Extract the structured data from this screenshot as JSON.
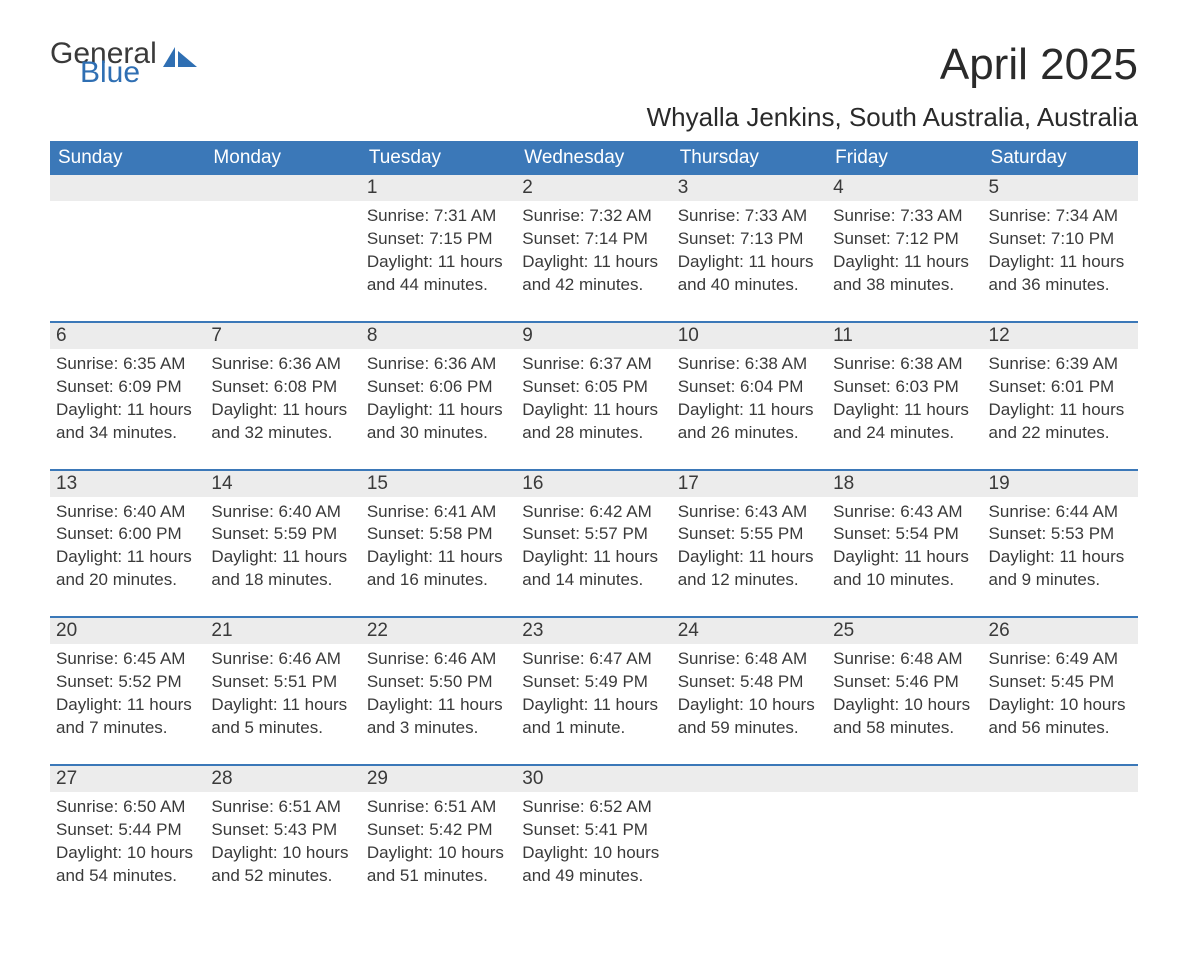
{
  "brand": {
    "line1": "General",
    "line2": "Blue"
  },
  "title": "April 2025",
  "subtitle": "Whyalla Jenkins, South Australia, Australia",
  "colors": {
    "header_bg": "#3b78b8",
    "header_fg": "#ffffff",
    "daynum_bg": "#ececec",
    "rule": "#3b78b8",
    "text": "#3a3a3a",
    "brand_blue": "#2f6fb3",
    "background": "#ffffff"
  },
  "typography": {
    "title_fontsize": 44,
    "subtitle_fontsize": 26,
    "header_fontsize": 19,
    "daynum_fontsize": 19,
    "cell_fontsize": 17,
    "font_family": "Segoe UI, Arial, Helvetica, sans-serif"
  },
  "calendar": {
    "type": "table",
    "columns": [
      "Sunday",
      "Monday",
      "Tuesday",
      "Wednesday",
      "Thursday",
      "Friday",
      "Saturday"
    ],
    "weeks": [
      [
        {
          "day": "",
          "lines": []
        },
        {
          "day": "",
          "lines": []
        },
        {
          "day": "1",
          "lines": [
            "Sunrise: 7:31 AM",
            "Sunset: 7:15 PM",
            "Daylight: 11 hours and 44 minutes."
          ]
        },
        {
          "day": "2",
          "lines": [
            "Sunrise: 7:32 AM",
            "Sunset: 7:14 PM",
            "Daylight: 11 hours and 42 minutes."
          ]
        },
        {
          "day": "3",
          "lines": [
            "Sunrise: 7:33 AM",
            "Sunset: 7:13 PM",
            "Daylight: 11 hours and 40 minutes."
          ]
        },
        {
          "day": "4",
          "lines": [
            "Sunrise: 7:33 AM",
            "Sunset: 7:12 PM",
            "Daylight: 11 hours and 38 minutes."
          ]
        },
        {
          "day": "5",
          "lines": [
            "Sunrise: 7:34 AM",
            "Sunset: 7:10 PM",
            "Daylight: 11 hours and 36 minutes."
          ]
        }
      ],
      [
        {
          "day": "6",
          "lines": [
            "Sunrise: 6:35 AM",
            "Sunset: 6:09 PM",
            "Daylight: 11 hours and 34 minutes."
          ]
        },
        {
          "day": "7",
          "lines": [
            "Sunrise: 6:36 AM",
            "Sunset: 6:08 PM",
            "Daylight: 11 hours and 32 minutes."
          ]
        },
        {
          "day": "8",
          "lines": [
            "Sunrise: 6:36 AM",
            "Sunset: 6:06 PM",
            "Daylight: 11 hours and 30 minutes."
          ]
        },
        {
          "day": "9",
          "lines": [
            "Sunrise: 6:37 AM",
            "Sunset: 6:05 PM",
            "Daylight: 11 hours and 28 minutes."
          ]
        },
        {
          "day": "10",
          "lines": [
            "Sunrise: 6:38 AM",
            "Sunset: 6:04 PM",
            "Daylight: 11 hours and 26 minutes."
          ]
        },
        {
          "day": "11",
          "lines": [
            "Sunrise: 6:38 AM",
            "Sunset: 6:03 PM",
            "Daylight: 11 hours and 24 minutes."
          ]
        },
        {
          "day": "12",
          "lines": [
            "Sunrise: 6:39 AM",
            "Sunset: 6:01 PM",
            "Daylight: 11 hours and 22 minutes."
          ]
        }
      ],
      [
        {
          "day": "13",
          "lines": [
            "Sunrise: 6:40 AM",
            "Sunset: 6:00 PM",
            "Daylight: 11 hours and 20 minutes."
          ]
        },
        {
          "day": "14",
          "lines": [
            "Sunrise: 6:40 AM",
            "Sunset: 5:59 PM",
            "Daylight: 11 hours and 18 minutes."
          ]
        },
        {
          "day": "15",
          "lines": [
            "Sunrise: 6:41 AM",
            "Sunset: 5:58 PM",
            "Daylight: 11 hours and 16 minutes."
          ]
        },
        {
          "day": "16",
          "lines": [
            "Sunrise: 6:42 AM",
            "Sunset: 5:57 PM",
            "Daylight: 11 hours and 14 minutes."
          ]
        },
        {
          "day": "17",
          "lines": [
            "Sunrise: 6:43 AM",
            "Sunset: 5:55 PM",
            "Daylight: 11 hours and 12 minutes."
          ]
        },
        {
          "day": "18",
          "lines": [
            "Sunrise: 6:43 AM",
            "Sunset: 5:54 PM",
            "Daylight: 11 hours and 10 minutes."
          ]
        },
        {
          "day": "19",
          "lines": [
            "Sunrise: 6:44 AM",
            "Sunset: 5:53 PM",
            "Daylight: 11 hours and 9 minutes."
          ]
        }
      ],
      [
        {
          "day": "20",
          "lines": [
            "Sunrise: 6:45 AM",
            "Sunset: 5:52 PM",
            "Daylight: 11 hours and 7 minutes."
          ]
        },
        {
          "day": "21",
          "lines": [
            "Sunrise: 6:46 AM",
            "Sunset: 5:51 PM",
            "Daylight: 11 hours and 5 minutes."
          ]
        },
        {
          "day": "22",
          "lines": [
            "Sunrise: 6:46 AM",
            "Sunset: 5:50 PM",
            "Daylight: 11 hours and 3 minutes."
          ]
        },
        {
          "day": "23",
          "lines": [
            "Sunrise: 6:47 AM",
            "Sunset: 5:49 PM",
            "Daylight: 11 hours and 1 minute."
          ]
        },
        {
          "day": "24",
          "lines": [
            "Sunrise: 6:48 AM",
            "Sunset: 5:48 PM",
            "Daylight: 10 hours and 59 minutes."
          ]
        },
        {
          "day": "25",
          "lines": [
            "Sunrise: 6:48 AM",
            "Sunset: 5:46 PM",
            "Daylight: 10 hours and 58 minutes."
          ]
        },
        {
          "day": "26",
          "lines": [
            "Sunrise: 6:49 AM",
            "Sunset: 5:45 PM",
            "Daylight: 10 hours and 56 minutes."
          ]
        }
      ],
      [
        {
          "day": "27",
          "lines": [
            "Sunrise: 6:50 AM",
            "Sunset: 5:44 PM",
            "Daylight: 10 hours and 54 minutes."
          ]
        },
        {
          "day": "28",
          "lines": [
            "Sunrise: 6:51 AM",
            "Sunset: 5:43 PM",
            "Daylight: 10 hours and 52 minutes."
          ]
        },
        {
          "day": "29",
          "lines": [
            "Sunrise: 6:51 AM",
            "Sunset: 5:42 PM",
            "Daylight: 10 hours and 51 minutes."
          ]
        },
        {
          "day": "30",
          "lines": [
            "Sunrise: 6:52 AM",
            "Sunset: 5:41 PM",
            "Daylight: 10 hours and 49 minutes."
          ]
        },
        {
          "day": "",
          "lines": []
        },
        {
          "day": "",
          "lines": []
        },
        {
          "day": "",
          "lines": []
        }
      ]
    ]
  }
}
